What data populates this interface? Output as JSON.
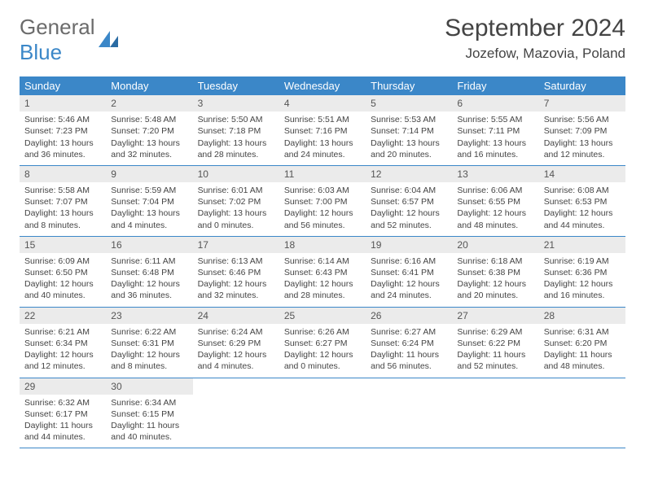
{
  "logo": {
    "line1": "General",
    "line2": "Blue"
  },
  "title": "September 2024",
  "location": "Jozefow, Mazovia, Poland",
  "colors": {
    "header_bg": "#3b87c8",
    "header_text": "#ffffff",
    "daynum_bg": "#ebebeb",
    "border": "#3b87c8",
    "text": "#444444",
    "bg": "#ffffff"
  },
  "dayHeaders": [
    "Sunday",
    "Monday",
    "Tuesday",
    "Wednesday",
    "Thursday",
    "Friday",
    "Saturday"
  ],
  "weeks": [
    [
      {
        "n": "1",
        "sr": "Sunrise: 5:46 AM",
        "ss": "Sunset: 7:23 PM",
        "dl": "Daylight: 13 hours and 36 minutes."
      },
      {
        "n": "2",
        "sr": "Sunrise: 5:48 AM",
        "ss": "Sunset: 7:20 PM",
        "dl": "Daylight: 13 hours and 32 minutes."
      },
      {
        "n": "3",
        "sr": "Sunrise: 5:50 AM",
        "ss": "Sunset: 7:18 PM",
        "dl": "Daylight: 13 hours and 28 minutes."
      },
      {
        "n": "4",
        "sr": "Sunrise: 5:51 AM",
        "ss": "Sunset: 7:16 PM",
        "dl": "Daylight: 13 hours and 24 minutes."
      },
      {
        "n": "5",
        "sr": "Sunrise: 5:53 AM",
        "ss": "Sunset: 7:14 PM",
        "dl": "Daylight: 13 hours and 20 minutes."
      },
      {
        "n": "6",
        "sr": "Sunrise: 5:55 AM",
        "ss": "Sunset: 7:11 PM",
        "dl": "Daylight: 13 hours and 16 minutes."
      },
      {
        "n": "7",
        "sr": "Sunrise: 5:56 AM",
        "ss": "Sunset: 7:09 PM",
        "dl": "Daylight: 13 hours and 12 minutes."
      }
    ],
    [
      {
        "n": "8",
        "sr": "Sunrise: 5:58 AM",
        "ss": "Sunset: 7:07 PM",
        "dl": "Daylight: 13 hours and 8 minutes."
      },
      {
        "n": "9",
        "sr": "Sunrise: 5:59 AM",
        "ss": "Sunset: 7:04 PM",
        "dl": "Daylight: 13 hours and 4 minutes."
      },
      {
        "n": "10",
        "sr": "Sunrise: 6:01 AM",
        "ss": "Sunset: 7:02 PM",
        "dl": "Daylight: 13 hours and 0 minutes."
      },
      {
        "n": "11",
        "sr": "Sunrise: 6:03 AM",
        "ss": "Sunset: 7:00 PM",
        "dl": "Daylight: 12 hours and 56 minutes."
      },
      {
        "n": "12",
        "sr": "Sunrise: 6:04 AM",
        "ss": "Sunset: 6:57 PM",
        "dl": "Daylight: 12 hours and 52 minutes."
      },
      {
        "n": "13",
        "sr": "Sunrise: 6:06 AM",
        "ss": "Sunset: 6:55 PM",
        "dl": "Daylight: 12 hours and 48 minutes."
      },
      {
        "n": "14",
        "sr": "Sunrise: 6:08 AM",
        "ss": "Sunset: 6:53 PM",
        "dl": "Daylight: 12 hours and 44 minutes."
      }
    ],
    [
      {
        "n": "15",
        "sr": "Sunrise: 6:09 AM",
        "ss": "Sunset: 6:50 PM",
        "dl": "Daylight: 12 hours and 40 minutes."
      },
      {
        "n": "16",
        "sr": "Sunrise: 6:11 AM",
        "ss": "Sunset: 6:48 PM",
        "dl": "Daylight: 12 hours and 36 minutes."
      },
      {
        "n": "17",
        "sr": "Sunrise: 6:13 AM",
        "ss": "Sunset: 6:46 PM",
        "dl": "Daylight: 12 hours and 32 minutes."
      },
      {
        "n": "18",
        "sr": "Sunrise: 6:14 AM",
        "ss": "Sunset: 6:43 PM",
        "dl": "Daylight: 12 hours and 28 minutes."
      },
      {
        "n": "19",
        "sr": "Sunrise: 6:16 AM",
        "ss": "Sunset: 6:41 PM",
        "dl": "Daylight: 12 hours and 24 minutes."
      },
      {
        "n": "20",
        "sr": "Sunrise: 6:18 AM",
        "ss": "Sunset: 6:38 PM",
        "dl": "Daylight: 12 hours and 20 minutes."
      },
      {
        "n": "21",
        "sr": "Sunrise: 6:19 AM",
        "ss": "Sunset: 6:36 PM",
        "dl": "Daylight: 12 hours and 16 minutes."
      }
    ],
    [
      {
        "n": "22",
        "sr": "Sunrise: 6:21 AM",
        "ss": "Sunset: 6:34 PM",
        "dl": "Daylight: 12 hours and 12 minutes."
      },
      {
        "n": "23",
        "sr": "Sunrise: 6:22 AM",
        "ss": "Sunset: 6:31 PM",
        "dl": "Daylight: 12 hours and 8 minutes."
      },
      {
        "n": "24",
        "sr": "Sunrise: 6:24 AM",
        "ss": "Sunset: 6:29 PM",
        "dl": "Daylight: 12 hours and 4 minutes."
      },
      {
        "n": "25",
        "sr": "Sunrise: 6:26 AM",
        "ss": "Sunset: 6:27 PM",
        "dl": "Daylight: 12 hours and 0 minutes."
      },
      {
        "n": "26",
        "sr": "Sunrise: 6:27 AM",
        "ss": "Sunset: 6:24 PM",
        "dl": "Daylight: 11 hours and 56 minutes."
      },
      {
        "n": "27",
        "sr": "Sunrise: 6:29 AM",
        "ss": "Sunset: 6:22 PM",
        "dl": "Daylight: 11 hours and 52 minutes."
      },
      {
        "n": "28",
        "sr": "Sunrise: 6:31 AM",
        "ss": "Sunset: 6:20 PM",
        "dl": "Daylight: 11 hours and 48 minutes."
      }
    ],
    [
      {
        "n": "29",
        "sr": "Sunrise: 6:32 AM",
        "ss": "Sunset: 6:17 PM",
        "dl": "Daylight: 11 hours and 44 minutes."
      },
      {
        "n": "30",
        "sr": "Sunrise: 6:34 AM",
        "ss": "Sunset: 6:15 PM",
        "dl": "Daylight: 11 hours and 40 minutes."
      },
      null,
      null,
      null,
      null,
      null
    ]
  ]
}
